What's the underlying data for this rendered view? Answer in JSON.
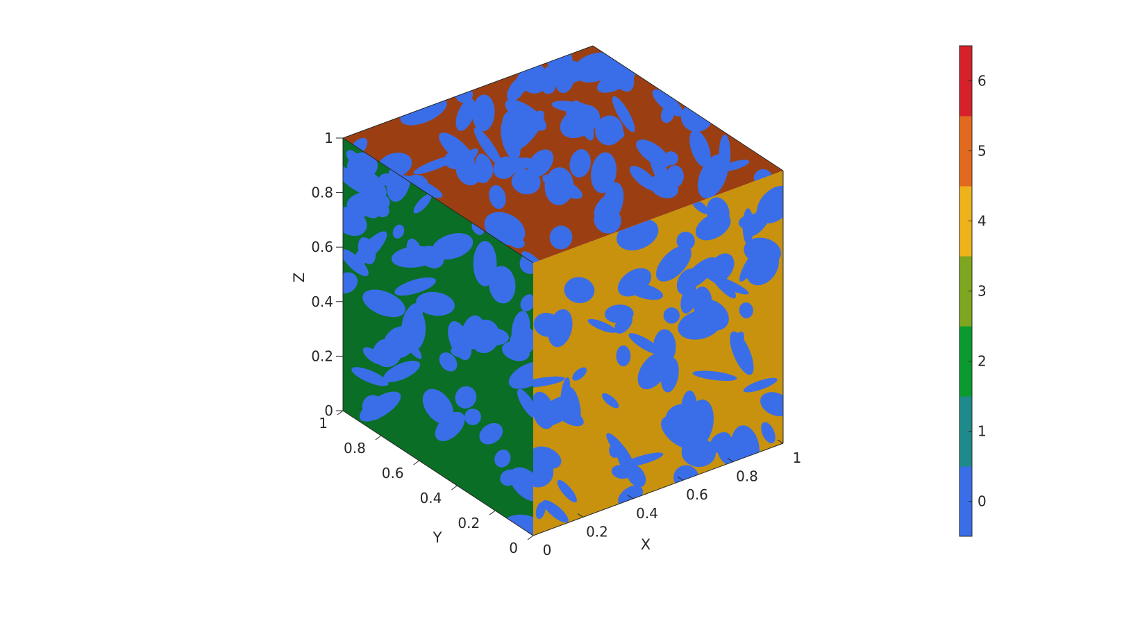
{
  "chart_data": {
    "type": "3d-surface",
    "xlabel": "X",
    "ylabel": "Y",
    "zlabel": "Z",
    "xlim": [
      0,
      1
    ],
    "ylim": [
      0,
      1
    ],
    "zlim": [
      0,
      1
    ],
    "xticks": [
      "0",
      "0.2",
      "0.4",
      "0.6",
      "0.8",
      "1"
    ],
    "yticks": [
      "0",
      "0.2",
      "0.4",
      "0.6",
      "0.8",
      "1"
    ],
    "zticks": [
      "0",
      "0.2",
      "0.4",
      "0.6",
      "0.8",
      "1"
    ],
    "colorbar": {
      "ticks": [
        "0",
        "1",
        "2",
        "3",
        "4",
        "5",
        "6"
      ],
      "range": [
        -0.5,
        6.5
      ],
      "colors": [
        "#3a6ee8",
        "#1e8a8a",
        "#0a9a2e",
        "#7ea61e",
        "#eeb21a",
        "#e26a1e",
        "#d6202a"
      ]
    },
    "faces": {
      "top_color": "#9b3f12",
      "left_color": "#0a6e26",
      "right_color": "#c8920e",
      "surface_color": "#3a6ee8"
    }
  }
}
